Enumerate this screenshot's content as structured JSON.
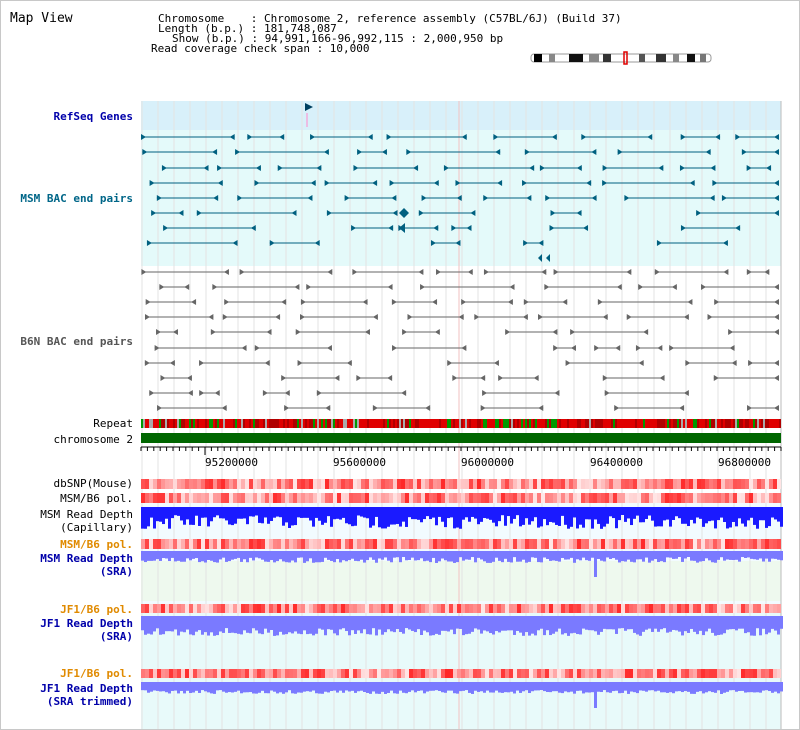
{
  "header": {
    "title": "Map View",
    "info_lines": [
      "Chromosome    : Chromosome 2, reference assembly (C57BL/6J) (Build 37)",
      "Length (b.p.) : 181,748,087",
      "Show (b.p.) : 94,991,166-96,992,115 : 2,000,950 bp",
      "Read coverage check span : 10,000"
    ]
  },
  "tracks": {
    "refseq": "RefSeq Genes",
    "msm_bac": "MSM BAC end pairs",
    "b6n_bac": "B6N BAC end pairs",
    "repeat": "Repeat",
    "chromosome": "chromosome 2",
    "dbsnp": "dbSNP(Mouse)",
    "msm_b6_pol_1": "MSM/B6 pol.",
    "msm_depth_cap": "MSM Read Depth\n(Capillary)",
    "msm_b6_pol_2": "MSM/B6 pol.",
    "msm_depth_sra": "MSM Read Depth\n(SRA)",
    "jf1_pol_1": "JF1/B6 pol.",
    "jf1_depth_sra": "JF1 Read Depth\n(SRA)",
    "jf1_pol_2": "JF1/B6 pol.",
    "jf1_depth_trim": "JF1 Read Depth\n(SRA trimmed)"
  },
  "axis": {
    "ticks": [
      "95200000",
      "95600000",
      "96000000",
      "96400000",
      "96800000"
    ]
  },
  "colors": {
    "refseq_bg": "#d8f0fa",
    "msm_bg": "#e4fafa",
    "gene": "#006080",
    "bac_gray": "#666666",
    "chromosome": "#006600",
    "depth_dark": "#1a1aff",
    "depth_light": "#7a7aff"
  }
}
